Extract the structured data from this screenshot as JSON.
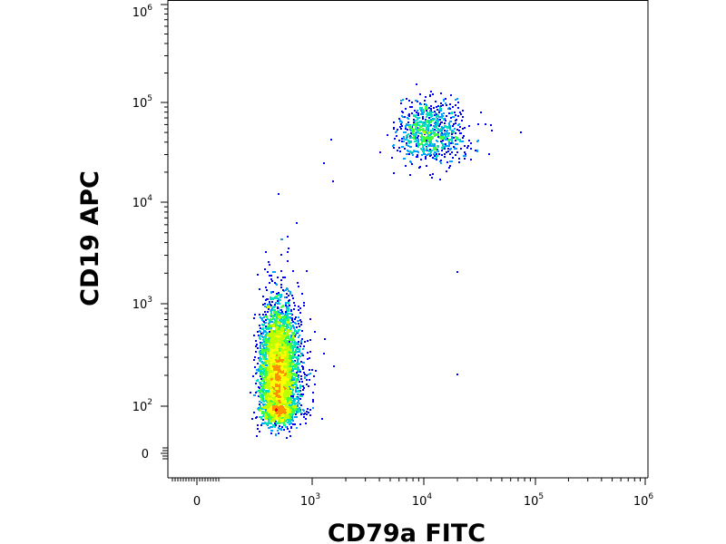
{
  "chart_data": {
    "type": "scatter",
    "subtype": "flow-cytometry density dot plot (biexponential axes)",
    "xlabel": "CD79a FITC",
    "ylabel": "CD19 APC",
    "x_scale": "biexponential",
    "y_scale": "biexponential",
    "xlim": [
      -1000,
      1000000
    ],
    "ylim": [
      -300,
      1000000
    ],
    "x_ticks": [
      {
        "base": "0",
        "exp": ""
      },
      {
        "base": "10",
        "exp": "3"
      },
      {
        "base": "10",
        "exp": "4"
      },
      {
        "base": "10",
        "exp": "5"
      },
      {
        "base": "10",
        "exp": "6"
      }
    ],
    "y_ticks": [
      {
        "base": "0",
        "exp": ""
      },
      {
        "base": "10",
        "exp": "2"
      },
      {
        "base": "10",
        "exp": "3"
      },
      {
        "base": "10",
        "exp": "4"
      },
      {
        "base": "10",
        "exp": "5"
      },
      {
        "base": "10",
        "exp": "6"
      }
    ],
    "grid": false,
    "legend": "none",
    "colormap": [
      "#0000ff",
      "#00a0ff",
      "#00e0c0",
      "#40ff40",
      "#c0ff00",
      "#ffff00",
      "#ff9000",
      "#ff0000"
    ],
    "populations": [
      {
        "x_center": 400,
        "y_center": 200,
        "x_spread_decades": 0.1,
        "y_spread_decades": 0.33,
        "relative_size": 0.87
      },
      {
        "x_center": 11000,
        "y_center": 50000,
        "x_spread_decades": 0.14,
        "y_spread_decades": 0.15,
        "relative_size": 0.13
      }
    ],
    "outliers": [
      [
        1450,
        43000
      ],
      [
        1250,
        25000
      ],
      [
        1500,
        16500
      ],
      [
        19500,
        2100
      ],
      [
        19500,
        210
      ]
    ]
  }
}
